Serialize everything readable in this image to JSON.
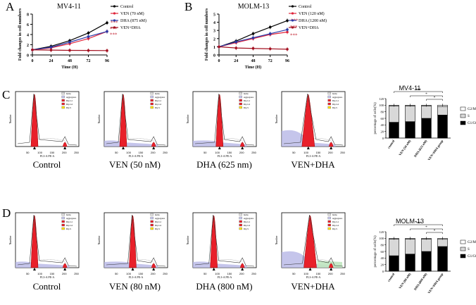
{
  "panels": {
    "A": "A",
    "B": "B",
    "C": "C",
    "D": "D"
  },
  "line_charts": [
    {
      "panel": "A",
      "title": "MV4-11",
      "xlabel": "Time (H)",
      "ylabel": "Fold changes in cell numbers",
      "yticks": [
        "0",
        "2",
        "4",
        "6",
        "8"
      ],
      "xticks": [
        "0",
        "24",
        "48",
        "72",
        "96"
      ],
      "legend": [
        "Control",
        "VEN (70 nM)",
        "DHA (875 nM)",
        "VEN+DHA"
      ],
      "significance": "***"
    },
    {
      "panel": "B",
      "title": "MOLM-13",
      "xlabel": "Time (H)",
      "ylabel": "Fold changes in cell numbers",
      "yticks": [
        "0",
        "1",
        "2",
        "3",
        "4",
        "5"
      ],
      "xticks": [
        "0",
        "24",
        "48",
        "72",
        "96"
      ],
      "legend": [
        "Control",
        "VEN (120 nM)",
        "DHA (1200 nM)",
        "VEN+DHA"
      ],
      "significance": "***"
    }
  ],
  "chart_data": [
    {
      "type": "line",
      "title": "MV4-11",
      "xlabel": "Time (H)",
      "ylabel": "Fold changes in cell numbers",
      "x": [
        0,
        24,
        48,
        72,
        96
      ],
      "ylim": [
        0,
        8
      ],
      "series": [
        {
          "name": "Control",
          "color": "#000000",
          "values": [
            1.0,
            1.7,
            2.8,
            4.3,
            6.3
          ]
        },
        {
          "name": "VEN (70 nM)",
          "color": "#e0243a",
          "values": [
            1.0,
            1.4,
            2.2,
            3.2,
            4.6
          ]
        },
        {
          "name": "DHA (875 nM)",
          "color": "#2b3aa8",
          "values": [
            1.0,
            1.5,
            2.5,
            3.6,
            4.6
          ]
        },
        {
          "name": "VEN+DHA",
          "color": "#a31020",
          "values": [
            1.0,
            0.95,
            0.9,
            0.88,
            0.85
          ]
        }
      ]
    },
    {
      "type": "line",
      "title": "MOLM-13",
      "xlabel": "Time (H)",
      "ylabel": "Fold changes in cell numbers",
      "x": [
        0,
        24,
        48,
        72,
        96
      ],
      "ylim": [
        0,
        5
      ],
      "series": [
        {
          "name": "Control",
          "color": "#000000",
          "values": [
            1.0,
            1.7,
            2.6,
            3.4,
            4.2
          ]
        },
        {
          "name": "VEN (120 nM)",
          "color": "#e0243a",
          "values": [
            1.0,
            1.5,
            2.0,
            2.5,
            2.8
          ]
        },
        {
          "name": "DHA (1200 nM)",
          "color": "#2b3aa8",
          "values": [
            1.0,
            1.6,
            2.1,
            2.6,
            3.1
          ]
        },
        {
          "name": "VEN+DHA",
          "color": "#a31020",
          "values": [
            1.0,
            0.85,
            0.8,
            0.75,
            0.7
          ]
        }
      ]
    },
    {
      "type": "bar",
      "title": "MV4-11",
      "ylabel": "percentage of cells(%)",
      "categories": [
        "control",
        "VEN (50 nM)",
        "DHA (625 nM)",
        "VEN+DHA group"
      ],
      "ylim": [
        0,
        120
      ],
      "yticks": [
        "0",
        "20",
        "40",
        "60",
        "80",
        "100",
        "120"
      ],
      "series": [
        {
          "name": "G1/G0",
          "color": "#000000",
          "values": [
            48,
            50,
            60,
            70
          ]
        },
        {
          "name": "S",
          "color": "#d8d8d8",
          "values": [
            50,
            48,
            38,
            26
          ]
        },
        {
          "name": "G2/M",
          "color": "#ffffff",
          "values": [
            2,
            2,
            2,
            4
          ]
        }
      ],
      "significance": [
        "***",
        "*",
        "*"
      ]
    },
    {
      "type": "bar",
      "title": "MOLM-13",
      "ylabel": "percentage of cells(%)",
      "categories": [
        "control",
        "VEN (80 nM)",
        "DHA (800 nM)",
        "VEN+DHA group"
      ],
      "ylim": [
        0,
        120
      ],
      "yticks": [
        "0",
        "20",
        "40",
        "60",
        "80",
        "100",
        "120"
      ],
      "series": [
        {
          "name": "G1/G0",
          "color": "#000000",
          "values": [
            47,
            52,
            60,
            75
          ]
        },
        {
          "name": "S",
          "color": "#d8d8d8",
          "values": [
            51,
            46,
            38,
            22
          ]
        },
        {
          "name": "G2/M",
          "color": "#ffffff",
          "values": [
            2,
            2,
            2,
            3
          ]
        }
      ],
      "significance": [
        "***",
        "*",
        "*"
      ]
    }
  ],
  "histograms": {
    "c_labels": [
      "Control",
      "VEN (50 nM)",
      "DHA (625 nm)",
      "VEN+DHA"
    ],
    "d_labels": [
      "Control",
      "VEN (80 nM)",
      "DHA (800 nM)",
      "VEN+DHA"
    ],
    "xaxis_label": "FL3-A PE-A",
    "yaxis_label": "Number",
    "legend_items": [
      "Items",
      "Aggregates",
      "Dip G1",
      "Dip G2",
      "Dip S"
    ],
    "xticks": [
      "50",
      "100",
      "150",
      "200",
      "250"
    ]
  }
}
